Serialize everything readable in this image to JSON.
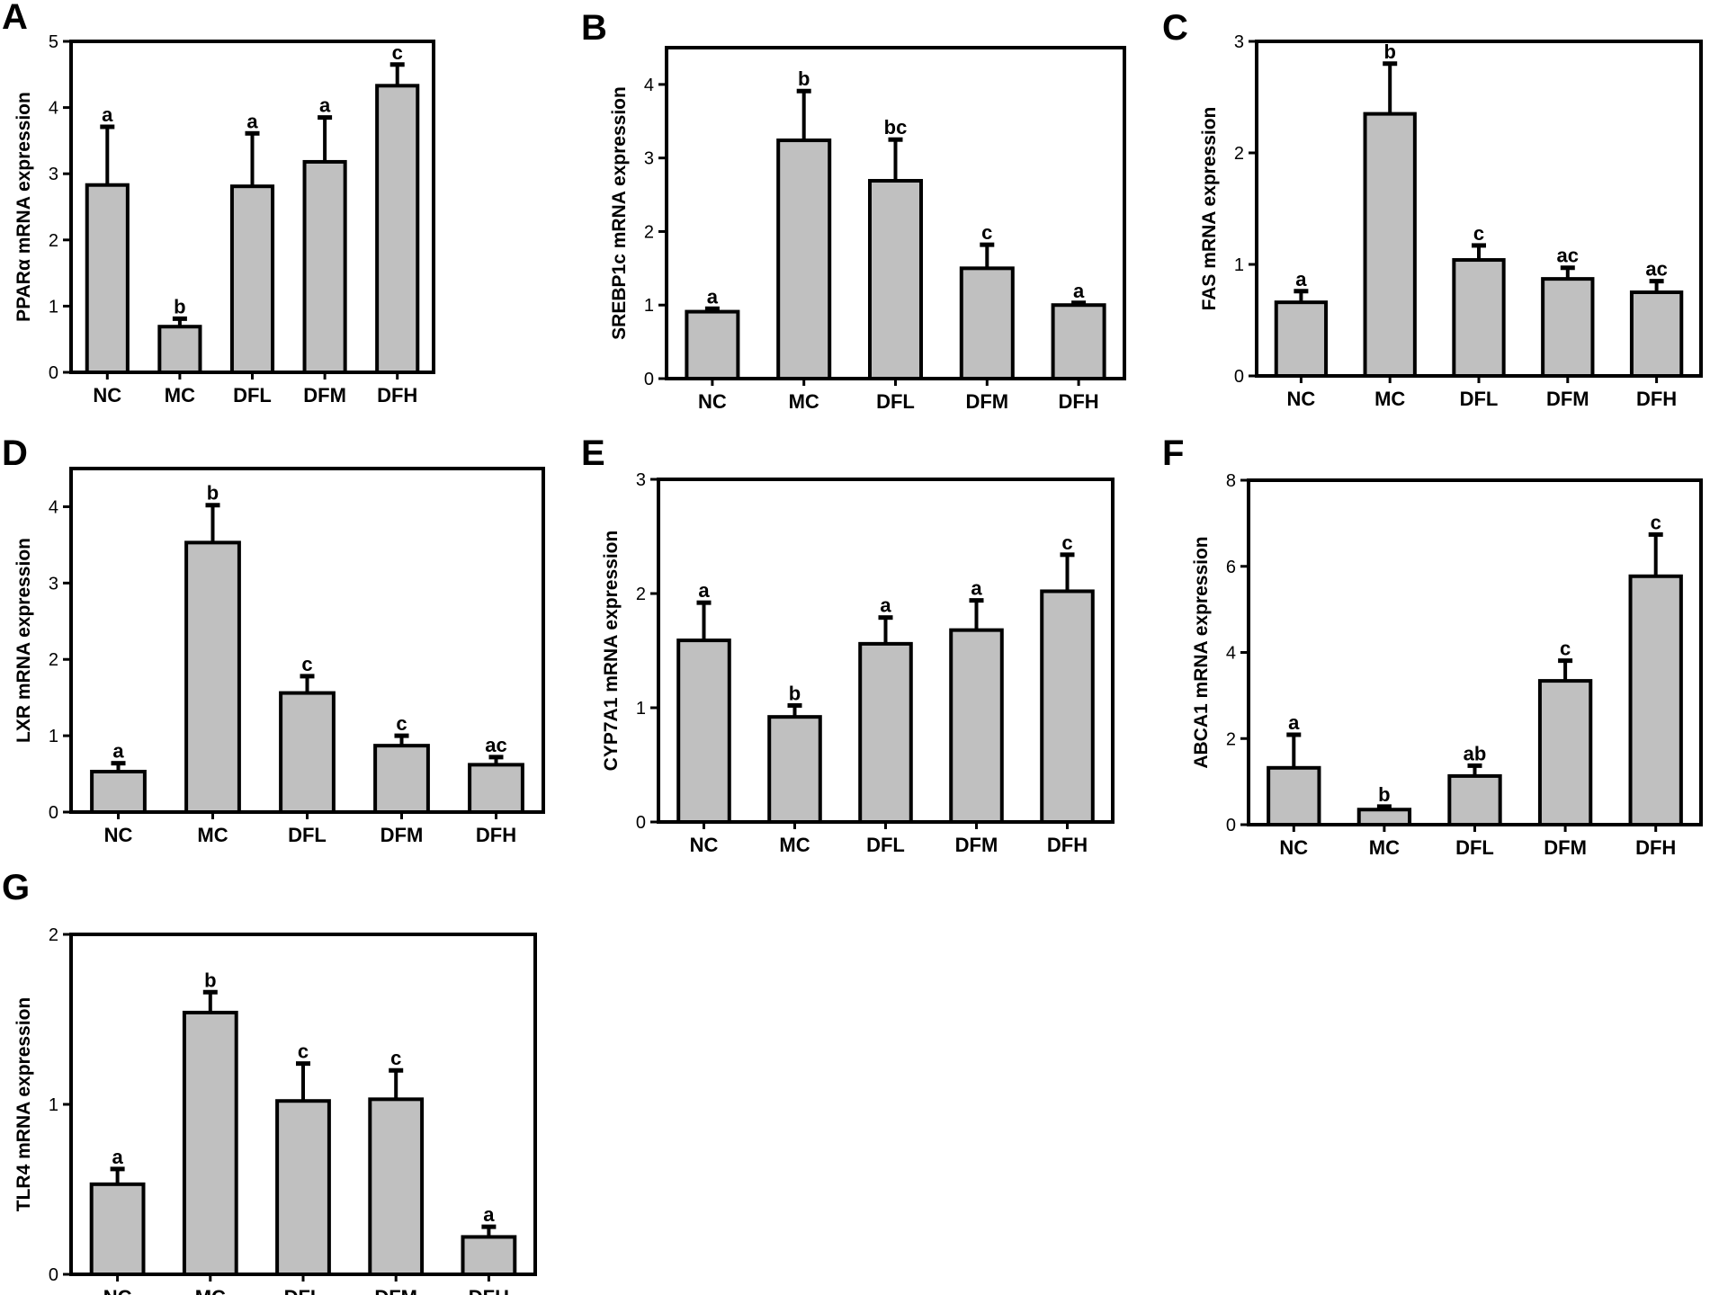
{
  "figure": {
    "description_type": "multi-panel bar chart",
    "bar_color": "#c0c0c0",
    "line_color": "#000000"
  },
  "chart_data": [
    {
      "type": "bar",
      "panel": "A",
      "title": "",
      "xlabel": "",
      "ylabel": "PPARα mRNA expression",
      "categories": [
        "NC",
        "MC",
        "DFL",
        "DFM",
        "DFH"
      ],
      "values": [
        2.83,
        0.69,
        2.81,
        3.18,
        4.33
      ],
      "errors": [
        0.88,
        0.12,
        0.8,
        0.67,
        0.32
      ],
      "significance": [
        "a",
        "b",
        "a",
        "a",
        "c"
      ],
      "ylim": [
        0,
        5
      ],
      "yticks": [
        "0",
        "1",
        "2",
        "3",
        "4",
        "5"
      ],
      "grid": false
    },
    {
      "type": "bar",
      "panel": "B",
      "title": "",
      "xlabel": "",
      "ylabel": "SREBP1c mRNA expression",
      "categories": [
        "NC",
        "MC",
        "DFL",
        "DFM",
        "DFH"
      ],
      "values": [
        0.91,
        3.24,
        2.69,
        1.5,
        1.0
      ],
      "errors": [
        0.04,
        0.67,
        0.56,
        0.32,
        0.03
      ],
      "significance": [
        "a",
        "b",
        "bc",
        "c",
        "a"
      ],
      "ylim": [
        0,
        4.5
      ],
      "yticks": [
        "0",
        "1",
        "2",
        "3",
        "4"
      ],
      "grid": false
    },
    {
      "type": "bar",
      "panel": "C",
      "title": "",
      "xlabel": "",
      "ylabel": "FAS mRNA expression",
      "categories": [
        "NC",
        "MC",
        "DFL",
        "DFM",
        "DFH"
      ],
      "values": [
        0.66,
        2.35,
        1.04,
        0.87,
        0.75
      ],
      "errors": [
        0.1,
        0.45,
        0.13,
        0.1,
        0.1
      ],
      "significance": [
        "a",
        "b",
        "c",
        "ac",
        "ac"
      ],
      "ylim": [
        0,
        3
      ],
      "yticks": [
        "0",
        "1",
        "2",
        "3"
      ],
      "grid": false
    },
    {
      "type": "bar",
      "panel": "D",
      "title": "",
      "xlabel": "",
      "ylabel": "LXR mRNA expression",
      "categories": [
        "NC",
        "MC",
        "DFL",
        "DFM",
        "DFH"
      ],
      "values": [
        0.53,
        3.53,
        1.56,
        0.87,
        0.62
      ],
      "errors": [
        0.11,
        0.49,
        0.22,
        0.13,
        0.1
      ],
      "significance": [
        "a",
        "b",
        "c",
        "c",
        "ac"
      ],
      "ylim": [
        0,
        4.5
      ],
      "yticks": [
        "0",
        "1",
        "2",
        "3",
        "4"
      ],
      "grid": false
    },
    {
      "type": "bar",
      "panel": "E",
      "title": "",
      "xlabel": "",
      "ylabel": "CYP7A1 mRNA expression",
      "categories": [
        "NC",
        "MC",
        "DFL",
        "DFM",
        "DFH"
      ],
      "values": [
        1.59,
        0.92,
        1.56,
        1.68,
        2.02
      ],
      "errors": [
        0.33,
        0.1,
        0.23,
        0.26,
        0.32
      ],
      "significance": [
        "a",
        "b",
        "a",
        "a",
        "c"
      ],
      "ylim": [
        0,
        3
      ],
      "yticks": [
        "0",
        "1",
        "2",
        "3"
      ],
      "grid": false
    },
    {
      "type": "bar",
      "panel": "F",
      "title": "",
      "xlabel": "",
      "ylabel": "ABCA1 mRNA expression",
      "categories": [
        "NC",
        "MC",
        "DFL",
        "DFM",
        "DFH"
      ],
      "values": [
        1.32,
        0.35,
        1.13,
        3.34,
        5.77
      ],
      "errors": [
        0.77,
        0.07,
        0.24,
        0.47,
        0.97
      ],
      "significance": [
        "a",
        "b",
        "ab",
        "c",
        "c"
      ],
      "ylim": [
        0,
        8
      ],
      "yticks": [
        "0",
        "2",
        "4",
        "6",
        "8"
      ],
      "grid": false
    },
    {
      "type": "bar",
      "panel": "G",
      "title": "",
      "xlabel": "",
      "ylabel": "TLR4 mRNA expression",
      "categories": [
        "NC",
        "MC",
        "DFL",
        "DFM",
        "DFH"
      ],
      "values": [
        0.53,
        1.54,
        1.02,
        1.03,
        0.22
      ],
      "errors": [
        0.09,
        0.12,
        0.22,
        0.17,
        0.06
      ],
      "significance": [
        "a",
        "b",
        "c",
        "c",
        "a"
      ],
      "ylim": [
        0,
        2
      ],
      "yticks": [
        "0",
        "1",
        "2"
      ],
      "grid": false
    }
  ]
}
